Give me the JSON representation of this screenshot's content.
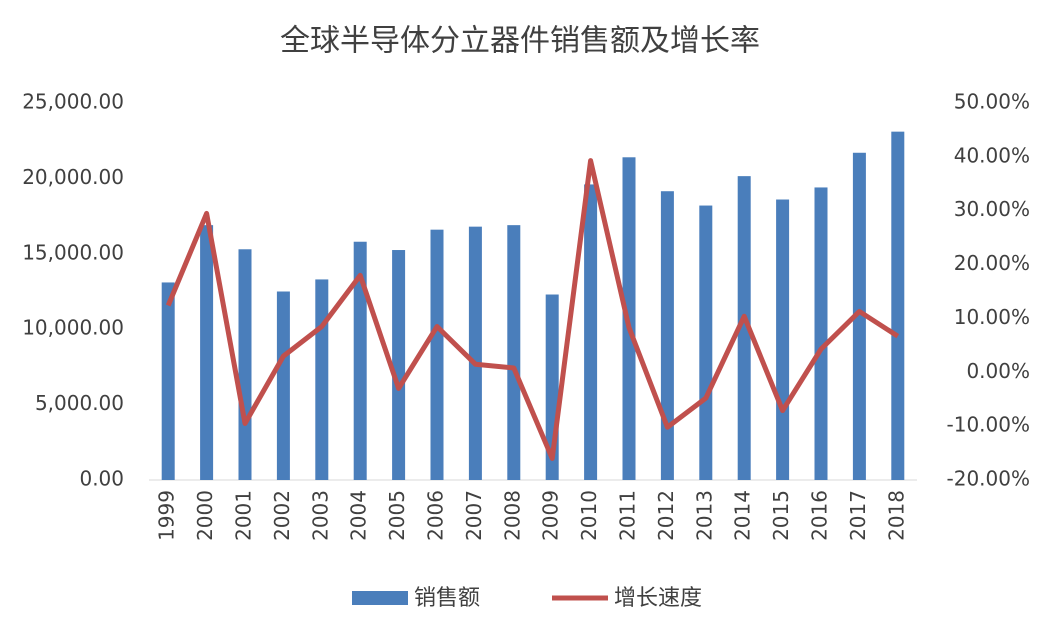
{
  "chart_data": {
    "type": "bar-line",
    "title": "全球半导体分立器件销售额及增长率",
    "categories": [
      "1999",
      "2000",
      "2001",
      "2002",
      "2003",
      "2004",
      "2005",
      "2006",
      "2007",
      "2008",
      "2009",
      "2010",
      "2011",
      "2012",
      "2013",
      "2014",
      "2015",
      "2016",
      "2017",
      "2018"
    ],
    "series": [
      {
        "name": "销售额",
        "type": "bar",
        "color": "#4a7ebb",
        "axis": "y",
        "values": [
          13100,
          16900,
          15300,
          12500,
          13300,
          15800,
          15250,
          16600,
          16800,
          16900,
          12300,
          19600,
          21400,
          19150,
          18200,
          20150,
          18600,
          19400,
          21700,
          23100
        ]
      },
      {
        "name": "增长速度",
        "type": "line",
        "color": "#c0504d",
        "axis": "y2",
        "values": [
          12.4,
          29.5,
          -9.5,
          3,
          8.5,
          18,
          -3,
          8.5,
          1.5,
          0.8,
          -16,
          39.3,
          8.3,
          -10.2,
          -4.8,
          10.4,
          -7.1,
          4.3,
          11.3,
          6.7
        ]
      }
    ],
    "ylim": [
      0,
      25000
    ],
    "yticks": [
      {
        "value": 0,
        "label": "0.00"
      },
      {
        "value": 5000,
        "label": "5,000.00"
      },
      {
        "value": 10000,
        "label": "10,000.00"
      },
      {
        "value": 15000,
        "label": "15,000.00"
      },
      {
        "value": 20000,
        "label": "20,000.00"
      },
      {
        "value": 25000,
        "label": "25,000.00"
      }
    ],
    "y2lim": [
      -20,
      50
    ],
    "y2ticks": [
      {
        "value": -20,
        "label": "-20.00%"
      },
      {
        "value": -10,
        "label": "-10.00%"
      },
      {
        "value": 0,
        "label": "0.00%"
      },
      {
        "value": 10,
        "label": "10.00%"
      },
      {
        "value": 20,
        "label": "20.00%"
      },
      {
        "value": 30,
        "label": "30.00%"
      },
      {
        "value": 40,
        "label": "40.00%"
      },
      {
        "value": 50,
        "label": "50.00%"
      }
    ],
    "legend": "bottom"
  }
}
